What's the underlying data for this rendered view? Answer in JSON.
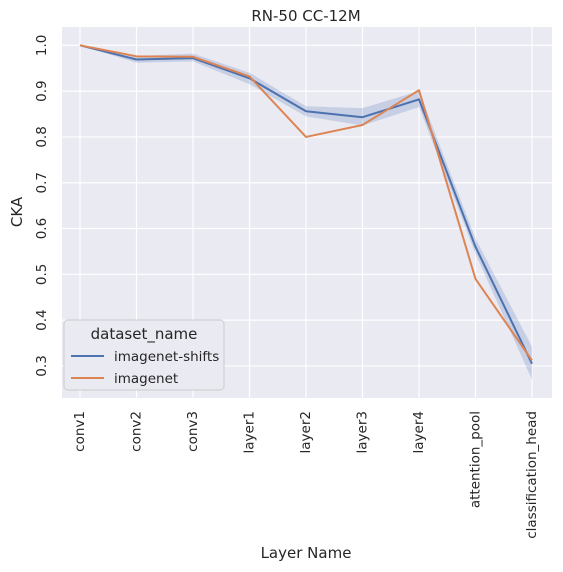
{
  "chart_data": {
    "type": "line",
    "title": "RN-50  CC-12M",
    "xlabel": "Layer Name",
    "ylabel": "CKA",
    "categories": [
      "conv1",
      "conv2",
      "conv3",
      "layer1",
      "layer2",
      "layer3",
      "layer4",
      "attention_pool",
      "classification_head"
    ],
    "yticks": [
      "0.3",
      "0.4",
      "0.5",
      "0.6",
      "0.7",
      "0.8",
      "0.9",
      "1.0"
    ],
    "ylim": [
      0.23,
      1.04
    ],
    "grid": true,
    "legend_position": "lower-left",
    "legend_title": "dataset_name",
    "series": [
      {
        "name": "imagenet-shifts",
        "color": "#4c72b0",
        "values": [
          1.0,
          0.969,
          0.972,
          0.928,
          0.856,
          0.843,
          0.882,
          0.56,
          0.305
        ],
        "ci_low": [
          1.0,
          0.962,
          0.965,
          0.915,
          0.845,
          0.825,
          0.865,
          0.545,
          0.27
        ],
        "ci_high": [
          1.0,
          0.977,
          0.982,
          0.94,
          0.867,
          0.863,
          0.9,
          0.578,
          0.342
        ]
      },
      {
        "name": "imagenet",
        "color": "#dd8452",
        "values": [
          1.0,
          0.976,
          0.975,
          0.932,
          0.8,
          0.826,
          0.902,
          0.49,
          0.312
        ]
      }
    ]
  }
}
